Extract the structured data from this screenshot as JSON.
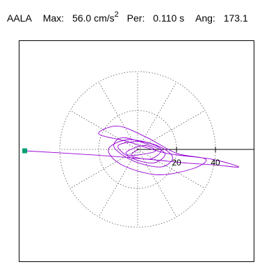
{
  "header": {
    "station": "AALA",
    "max_label": "Max:",
    "max_value": "56.0 cm/s",
    "max_exponent": "2",
    "per_label": "Per:",
    "per_value": "0.110 s",
    "ang_label": "Ang:",
    "ang_value": "173.1"
  },
  "chart_data": {
    "type": "scatter",
    "subtype": "polar-particle-motion",
    "max_acceleration_cm_s2": 56.0,
    "period_s": 0.11,
    "angle_deg": 173.1,
    "radial_ticks": [
      "20",
      "40"
    ],
    "radial_tick_values": [
      20,
      40
    ],
    "max_radius": 40,
    "colors": {
      "trace": "#9400D3",
      "marker": "#009E73",
      "frame": "#000000",
      "grid": "#555555"
    },
    "trace": {
      "x": [
        -58.0,
        -20.0,
        5.0,
        25.0,
        40.0,
        52.0,
        38.0,
        15.0,
        -5.0,
        -20.0,
        -10.0,
        5.0,
        20.0,
        35.0,
        28.0,
        10.0,
        -8.0,
        -15.0,
        -5.0,
        10.0,
        18.0,
        12.0,
        -2.0,
        -12.0,
        -8.0,
        4.0,
        14.0,
        8.0,
        -4.0,
        -10.0,
        2.0,
        12.0,
        6.0,
        -6.0,
        3.0,
        9.0,
        -3.0,
        0.0
      ],
      "y": [
        -0.7,
        -3.0,
        -5.0,
        -7.0,
        -8.0,
        -9.0,
        -5.0,
        -2.0,
        4.0,
        8.0,
        12.0,
        6.0,
        -2.0,
        -5.0,
        -10.0,
        -13.0,
        -8.0,
        0.0,
        5.0,
        2.0,
        -4.0,
        -9.0,
        -6.0,
        1.0,
        6.0,
        3.0,
        -2.0,
        -7.0,
        -4.0,
        2.0,
        4.0,
        0.0,
        -5.0,
        -2.0,
        2.0,
        -1.0,
        -3.0,
        0.0
      ]
    }
  }
}
